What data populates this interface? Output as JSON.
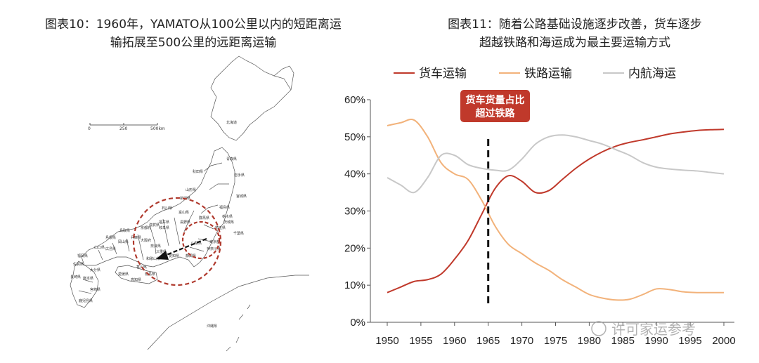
{
  "left_figure": {
    "title_line1": "图表10：1960年，YAMATO从100公里以内的短距离运",
    "title_line2": "输拓展至500公里的远距离运输",
    "scale_labels": [
      "0",
      "250",
      "500km"
    ],
    "map_labels": [
      "北海道",
      "青森県",
      "秋田県",
      "岩手県",
      "山形県",
      "宮城県",
      "新潟県",
      "福島県",
      "石川県",
      "富山県",
      "栃木県",
      "群馬県",
      "茨城県",
      "長野県",
      "福井県",
      "岐阜県",
      "埼玉県",
      "千葉県",
      "東京都",
      "神奈川県",
      "山梨県",
      "静岡県",
      "愛知県",
      "滋賀県",
      "京都府",
      "兵庫県",
      "大阪府",
      "奈良県",
      "三重県",
      "和歌山県",
      "鳥取県",
      "島根県",
      "岡山県",
      "広島県",
      "山口県",
      "香川県",
      "徳島県",
      "愛媛県",
      "高知県",
      "福岡県",
      "佐賀県",
      "長崎県",
      "熊本県",
      "大分県",
      "宮崎県",
      "鹿児島県",
      "沖縄県"
    ]
  },
  "right_figure": {
    "title_line1": "图表11：随着公路基础设施逐步改善，货车逐步",
    "title_line2": "超越铁路和海运成为最主要运输方式",
    "callout_line1": "货车货量占比",
    "callout_line2": "超过铁路",
    "watermark": "许可家运参考"
  },
  "chart_data": {
    "type": "line",
    "x": [
      1950,
      1952,
      1954,
      1956,
      1958,
      1960,
      1962,
      1964,
      1966,
      1968,
      1970,
      1972,
      1974,
      1976,
      1978,
      1980,
      1982,
      1984,
      1986,
      1988,
      1990,
      1992,
      1994,
      1996,
      1998,
      2000
    ],
    "x_ticks": [
      "1950",
      "1955",
      "1960",
      "1965",
      "1970",
      "1975",
      "1980",
      "1985",
      "1990",
      "1995",
      "2000"
    ],
    "y_ticks": [
      "0%",
      "10%",
      "20%",
      "30%",
      "40%",
      "50%",
      "60%"
    ],
    "ylim": [
      0,
      60
    ],
    "xlim": [
      1950,
      2000
    ],
    "marker_year": 1965,
    "legend_position": "top",
    "series": [
      {
        "name": "货车运输",
        "color": "#c0392b",
        "values": [
          8,
          9.5,
          11,
          11.5,
          13,
          17,
          22,
          29,
          36,
          39.5,
          38,
          35,
          35.5,
          38.5,
          41.5,
          44,
          46,
          47.5,
          48.5,
          49.2,
          50,
          50.8,
          51.3,
          51.7,
          51.9,
          52
        ]
      },
      {
        "name": "铁路运输",
        "color": "#f2b27a",
        "values": [
          53,
          53.8,
          54.5,
          50,
          43,
          40,
          38.5,
          33,
          26,
          21,
          18.5,
          16,
          14,
          11.5,
          9.5,
          7.5,
          6.5,
          6,
          6.2,
          7.5,
          9,
          8.8,
          8.2,
          8,
          8,
          8
        ]
      },
      {
        "name": "内航海运",
        "color": "#c8c8c8",
        "values": [
          39,
          37,
          35,
          39,
          45,
          45,
          42.5,
          41.5,
          41,
          41,
          44,
          48,
          50,
          50.5,
          50,
          49,
          48,
          46.5,
          45,
          43,
          41.8,
          41.3,
          41,
          40.8,
          40.4,
          40
        ]
      }
    ]
  }
}
